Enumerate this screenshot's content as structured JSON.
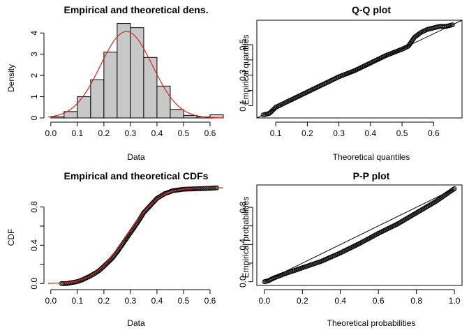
{
  "chart_data": [
    {
      "type": "bar",
      "title": "Empirical and theoretical dens.",
      "xlabel": "Data",
      "ylabel": "Density",
      "xlim": [
        -0.01,
        0.65
      ],
      "ylim": [
        0,
        4.6
      ],
      "xticks": [
        "0.0",
        "0.1",
        "0.2",
        "0.3",
        "0.4",
        "0.5",
        "0.6"
      ],
      "yticks": [
        "0",
        "1",
        "2",
        "3",
        "4"
      ],
      "series": [
        {
          "name": "",
          "bins": [
            {
              "x0": 0.0,
              "x1": 0.05,
              "value": 0.05
            },
            {
              "x0": 0.05,
              "x1": 0.1,
              "value": 0.3
            },
            {
              "x0": 0.1,
              "x1": 0.15,
              "value": 1.0
            },
            {
              "x0": 0.15,
              "x1": 0.2,
              "value": 1.8
            },
            {
              "x0": 0.2,
              "x1": 0.25,
              "value": 3.1
            },
            {
              "x0": 0.25,
              "x1": 0.3,
              "value": 4.45
            },
            {
              "x0": 0.3,
              "x1": 0.35,
              "value": 4.25
            },
            {
              "x0": 0.35,
              "x1": 0.4,
              "value": 2.85
            },
            {
              "x0": 0.4,
              "x1": 0.45,
              "value": 1.5
            },
            {
              "x0": 0.45,
              "x1": 0.5,
              "value": 0.4
            },
            {
              "x0": 0.5,
              "x1": 0.55,
              "value": 0.12
            },
            {
              "x0": 0.55,
              "x1": 0.6,
              "value": 0.05
            },
            {
              "x0": 0.6,
              "x1": 0.65,
              "value": 0.15
            }
          ],
          "density_curve": {
            "mean": 0.285,
            "sd": 0.098
          }
        }
      ],
      "colors": {
        "bars": "#c8c8c8",
        "curve": "#e0201b"
      }
    },
    {
      "type": "scatter",
      "title": "Q-Q plot",
      "xlabel": "Theoretical quantiles",
      "ylabel": "Empirical quantiles",
      "xlim": [
        0.04,
        0.69
      ],
      "ylim": [
        0.02,
        0.66
      ],
      "xticks": [
        "0.1",
        "0.2",
        "0.3",
        "0.4",
        "0.5",
        "0.6"
      ],
      "yticks": [
        "0.1",
        "0.3",
        "0.5"
      ],
      "series": [
        {
          "name": "",
          "points": [
            [
              0.06,
              0.04
            ],
            [
              0.08,
              0.05
            ],
            [
              0.09,
              0.07
            ],
            [
              0.1,
              0.09
            ],
            [
              0.12,
              0.11
            ],
            [
              0.15,
              0.14
            ],
            [
              0.2,
              0.19
            ],
            [
              0.25,
              0.24
            ],
            [
              0.3,
              0.29
            ],
            [
              0.35,
              0.33
            ],
            [
              0.4,
              0.38
            ],
            [
              0.45,
              0.43
            ],
            [
              0.5,
              0.47
            ],
            [
              0.52,
              0.49
            ],
            [
              0.53,
              0.52
            ],
            [
              0.54,
              0.55
            ],
            [
              0.56,
              0.58
            ],
            [
              0.58,
              0.6
            ],
            [
              0.6,
              0.61
            ],
            [
              0.62,
              0.62
            ],
            [
              0.64,
              0.62
            ],
            [
              0.66,
              0.63
            ]
          ],
          "reference_line": [
            [
              0.04,
              0.02
            ],
            [
              0.69,
              0.66
            ]
          ]
        }
      ]
    },
    {
      "type": "line",
      "title": "Empirical and theoretical CDFs",
      "xlabel": "Data",
      "ylabel": "CDF",
      "xlim": [
        -0.01,
        0.65
      ],
      "ylim": [
        -0.02,
        1.03
      ],
      "xticks": [
        "0.0",
        "0.1",
        "0.2",
        "0.3",
        "0.4",
        "0.5",
        "0.6"
      ],
      "yticks": [
        "0.0",
        "0.4",
        "0.8"
      ],
      "series": [
        {
          "name": "",
          "empirical_points": [
            [
              0.04,
              0.0
            ],
            [
              0.06,
              0.0
            ],
            [
              0.08,
              0.01
            ],
            [
              0.1,
              0.02
            ],
            [
              0.12,
              0.04
            ],
            [
              0.15,
              0.08
            ],
            [
              0.18,
              0.13
            ],
            [
              0.2,
              0.18
            ],
            [
              0.23,
              0.26
            ],
            [
              0.25,
              0.33
            ],
            [
              0.28,
              0.45
            ],
            [
              0.3,
              0.53
            ],
            [
              0.33,
              0.65
            ],
            [
              0.35,
              0.74
            ],
            [
              0.38,
              0.83
            ],
            [
              0.4,
              0.89
            ],
            [
              0.43,
              0.94
            ],
            [
              0.46,
              0.97
            ],
            [
              0.5,
              0.985
            ],
            [
              0.55,
              0.99
            ],
            [
              0.6,
              0.995
            ],
            [
              0.63,
              1.0
            ]
          ],
          "theoretical_curve": {
            "mean": 0.285,
            "sd": 0.098
          }
        }
      ],
      "colors": {
        "curve": "#e0201b"
      }
    },
    {
      "type": "scatter",
      "title": "P-P plot",
      "xlabel": "Theoretical probabilities",
      "ylabel": "Empirical probabilities",
      "xlim": [
        -0.04,
        1.04
      ],
      "ylim": [
        -0.04,
        1.04
      ],
      "xticks": [
        "0.0",
        "0.2",
        "0.4",
        "0.6",
        "0.8",
        "1.0"
      ],
      "yticks": [
        "0.0",
        "0.4",
        "0.8"
      ],
      "series": [
        {
          "name": "",
          "points": [
            [
              0.0,
              0.0
            ],
            [
              0.02,
              0.01
            ],
            [
              0.05,
              0.04
            ],
            [
              0.1,
              0.08
            ],
            [
              0.2,
              0.15
            ],
            [
              0.3,
              0.22
            ],
            [
              0.4,
              0.31
            ],
            [
              0.5,
              0.41
            ],
            [
              0.6,
              0.52
            ],
            [
              0.7,
              0.62
            ],
            [
              0.8,
              0.74
            ],
            [
              0.9,
              0.86
            ],
            [
              0.95,
              0.93
            ],
            [
              1.0,
              1.0
            ]
          ],
          "reference_line": [
            [
              0.0,
              0.0
            ],
            [
              1.0,
              1.0
            ]
          ]
        }
      ]
    }
  ]
}
